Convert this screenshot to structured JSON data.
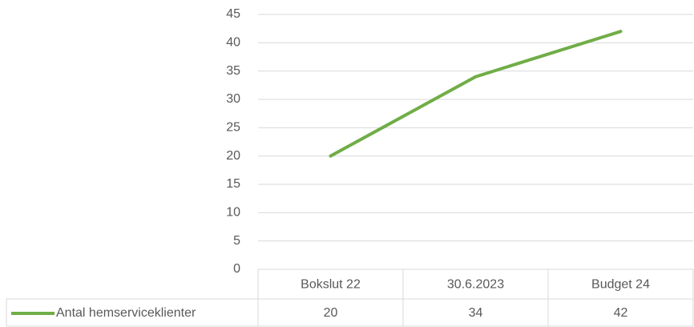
{
  "chart_data": {
    "type": "line",
    "categories": [
      "Bokslut 22",
      "30.6.2023",
      "Budget 24"
    ],
    "series": [
      {
        "name": "Antal hemserviceklienter",
        "color": "#70ad47",
        "values": [
          20,
          34,
          42
        ]
      }
    ],
    "ylim": [
      0,
      45
    ],
    "yticks": [
      0,
      5,
      10,
      15,
      20,
      25,
      30,
      35,
      40,
      45
    ],
    "grid": true,
    "data_table": true
  }
}
